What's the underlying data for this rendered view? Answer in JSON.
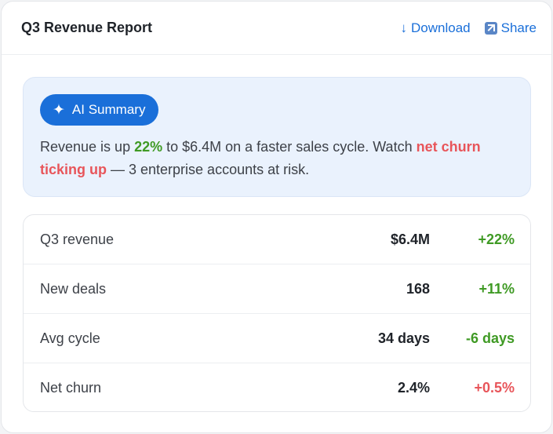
{
  "header": {
    "title": "Q3 Revenue Report",
    "download_label": "Download",
    "share_label": "Share"
  },
  "summary": {
    "badge_label": "AI Summary",
    "text_part1": "Revenue is up ",
    "text_highlight1": "22%",
    "text_part2": " to $6.4M on a faster sales cycle. Watch ",
    "text_highlight2": "net churn ticking up",
    "text_part3": " — 3 enterprise accounts at risk."
  },
  "metrics": [
    {
      "label": "Q3 revenue",
      "value": "$6.4M",
      "delta": "+22%",
      "trend": "good"
    },
    {
      "label": "New deals",
      "value": "168",
      "delta": "+11%",
      "trend": "good"
    },
    {
      "label": "Avg cycle",
      "value": "34 days",
      "delta": "-6 days",
      "trend": "good"
    },
    {
      "label": "Net churn",
      "value": "2.4%",
      "delta": "+0.5%",
      "trend": "bad"
    }
  ],
  "icons": {
    "download": "down-arrow-icon",
    "share": "share-icon",
    "sparkle": "sparkle-icon"
  },
  "colors": {
    "accent": "#1a6fd9",
    "positive": "#3f9a24",
    "negative": "#e8555a",
    "summary_bg": "#eaf2fd"
  }
}
